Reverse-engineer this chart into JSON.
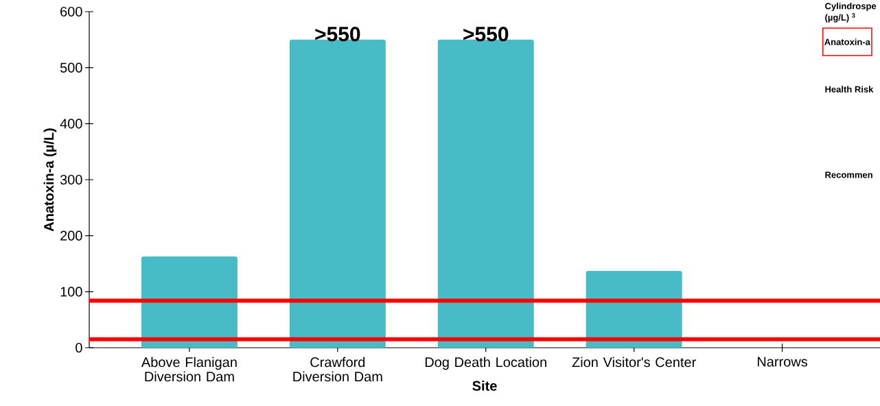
{
  "chart_data": {
    "type": "bar",
    "xlabel": "Site",
    "ylabel": "Anatoxin-a (µ/L)",
    "categories": [
      "Above Flanigan Diversion Dam",
      "Crawford Diversion Dam",
      "Dog Death Location",
      "Zion Visitor's Center",
      "Narrows"
    ],
    "values": [
      163,
      550,
      550,
      137,
      null
    ],
    "value_labels": [
      null,
      ">550",
      ">550",
      null,
      null
    ],
    "color": "#47bbc6",
    "ylim": [
      0,
      600
    ],
    "yticks": [
      0,
      100,
      200,
      300,
      400,
      500,
      600
    ],
    "grid": false,
    "ref_lines": [
      {
        "axis": "y",
        "value": 84,
        "color": "#ff0000"
      },
      {
        "axis": "y",
        "value": 15,
        "color": "#ff0000"
      }
    ],
    "annotations": [
      "Cylindrospe",
      "(µg/L) $^{3}$",
      "Anatoxin-a",
      "Health Risk",
      "Recommen"
    ]
  }
}
